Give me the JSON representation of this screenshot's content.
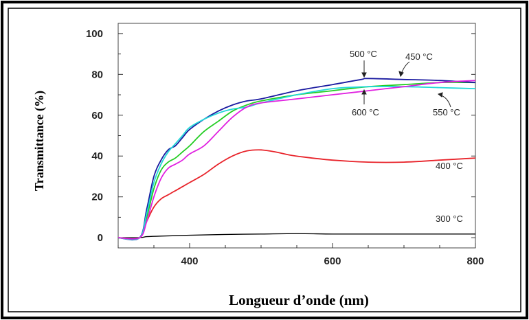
{
  "chart_data": {
    "type": "line",
    "title": "",
    "xlabel": "Longueur d’onde (nm)",
    "ylabel": "Transmittance  (%)",
    "xlim": [
      300,
      800
    ],
    "ylim": [
      -5,
      105
    ],
    "xticks": [
      400,
      600,
      800
    ],
    "yticks": [
      0,
      20,
      40,
      60,
      80,
      100
    ],
    "grid": false,
    "legend": "inline labels",
    "series": [
      {
        "name": "300 °C",
        "color": "#000000",
        "x": [
          300,
          330,
          340,
          360,
          400,
          450,
          500,
          550,
          600,
          650,
          700,
          750,
          800
        ],
        "y": [
          0,
          0,
          0.5,
          0.8,
          1.2,
          1.6,
          1.8,
          2.0,
          1.8,
          1.8,
          1.8,
          1.8,
          1.8
        ]
      },
      {
        "name": "400 °C",
        "color": "#e8232a",
        "x": [
          300,
          330,
          340,
          350,
          360,
          370,
          380,
          390,
          400,
          420,
          440,
          460,
          480,
          500,
          520,
          540,
          560,
          600,
          650,
          700,
          750,
          800
        ],
        "y": [
          0,
          0,
          8,
          15,
          19,
          21,
          23,
          25,
          27,
          31,
          36,
          40,
          42.5,
          43,
          42,
          40.5,
          39.5,
          38,
          37,
          37,
          38,
          39
        ]
      },
      {
        "name": "450 °C",
        "color": "#22cc22",
        "x": [
          300,
          330,
          340,
          350,
          360,
          370,
          380,
          390,
          400,
          420,
          440,
          460,
          480,
          500,
          550,
          600,
          650,
          700,
          750,
          800
        ],
        "y": [
          0,
          0,
          10,
          24,
          33,
          37,
          39,
          42,
          45,
          52,
          57,
          62,
          65,
          67,
          70,
          72,
          74,
          75,
          76,
          76
        ]
      },
      {
        "name": "500 °C",
        "color": "#1a1aa0",
        "x": [
          300,
          330,
          340,
          350,
          360,
          370,
          380,
          390,
          400,
          420,
          440,
          460,
          480,
          500,
          550,
          600,
          640,
          650,
          700,
          750,
          800
        ],
        "y": [
          0,
          0,
          14,
          30,
          38,
          43,
          45,
          49,
          53,
          58,
          62,
          65,
          67,
          68,
          72,
          75,
          77.5,
          78,
          77.5,
          77,
          76
        ]
      },
      {
        "name": "550 °C",
        "color": "#22d8d8",
        "x": [
          300,
          330,
          340,
          350,
          360,
          370,
          380,
          390,
          400,
          420,
          440,
          460,
          480,
          500,
          550,
          600,
          650,
          700,
          750,
          800
        ],
        "y": [
          0,
          0,
          12,
          27,
          36,
          42,
          46,
          50,
          54,
          58,
          61,
          63,
          64,
          66,
          70,
          73,
          74,
          74,
          73.5,
          73
        ]
      },
      {
        "name": "600 °C",
        "color": "#e020e0",
        "x": [
          300,
          330,
          340,
          350,
          360,
          370,
          380,
          390,
          400,
          420,
          440,
          460,
          480,
          500,
          550,
          600,
          650,
          700,
          750,
          800
        ],
        "y": [
          0,
          0,
          8,
          20,
          29,
          34,
          36,
          38,
          41,
          45,
          52,
          59,
          64,
          66,
          68,
          70,
          72,
          74,
          76,
          77
        ]
      }
    ]
  }
}
